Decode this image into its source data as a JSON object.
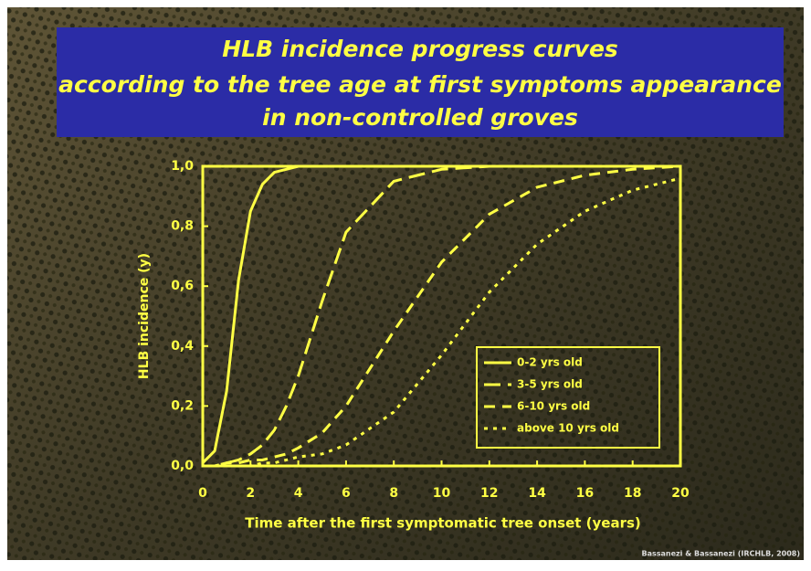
{
  "chart_data": {
    "type": "line",
    "title": [
      "HLB incidence progress curves",
      "according to the tree age at first symptoms appearance",
      "in non-controlled groves"
    ],
    "x_label": "Time after the first symptomatic tree onset (years)",
    "y_label": "HLB incidence (y)",
    "source": "Bassanezi & Bassanezi (IRCHLB, 2008)",
    "x": [
      0,
      0.5,
      1,
      1.5,
      2,
      2.5,
      3,
      3.5,
      4,
      5,
      6,
      8,
      10,
      12,
      14,
      16,
      18,
      20
    ],
    "series": [
      {
        "name": "0-2 yrs old",
        "color": "#ffff44",
        "values": [
          0.01,
          0.05,
          0.25,
          0.62,
          0.85,
          0.94,
          0.98,
          0.99,
          1,
          1,
          1,
          1,
          1,
          1,
          1,
          1,
          1,
          1
        ]
      },
      {
        "name": "3-5 yrs old",
        "color": "#ffff44",
        "values": [
          0,
          0,
          0.01,
          0.02,
          0.04,
          0.07,
          0.12,
          0.2,
          0.3,
          0.55,
          0.78,
          0.95,
          0.99,
          1,
          1,
          1,
          1,
          1
        ]
      },
      {
        "name": "6-10 yrs old",
        "color": "#ffff44",
        "values": [
          0,
          0,
          0.01,
          0.01,
          0.02,
          0.02,
          0.03,
          0.04,
          0.06,
          0.11,
          0.2,
          0.45,
          0.68,
          0.84,
          0.93,
          0.97,
          0.99,
          1
        ]
      },
      {
        "name": "above 10 yrs old",
        "color": "#ffff44",
        "values": [
          0,
          0,
          0,
          0,
          0,
          0.01,
          0.01,
          0.02,
          0.03,
          0.04,
          0.07,
          0.18,
          0.37,
          0.58,
          0.74,
          0.85,
          0.92,
          0.96
        ]
      }
    ],
    "xlim": [
      0,
      20
    ],
    "xticks": [
      0,
      2,
      4,
      6,
      8,
      10,
      12,
      14,
      16,
      18,
      20
    ],
    "ylim": [
      0,
      1
    ],
    "yticks": [
      {
        "value": 0,
        "label": "0,0"
      },
      {
        "value": 0.2,
        "label": "0,2"
      },
      {
        "value": 0.4,
        "label": "0,4"
      },
      {
        "value": 0.6,
        "label": "0,6"
      },
      {
        "value": 0.8,
        "label": "0,8"
      },
      {
        "value": 1,
        "label": "1,0"
      }
    ],
    "legend": "lower right"
  }
}
